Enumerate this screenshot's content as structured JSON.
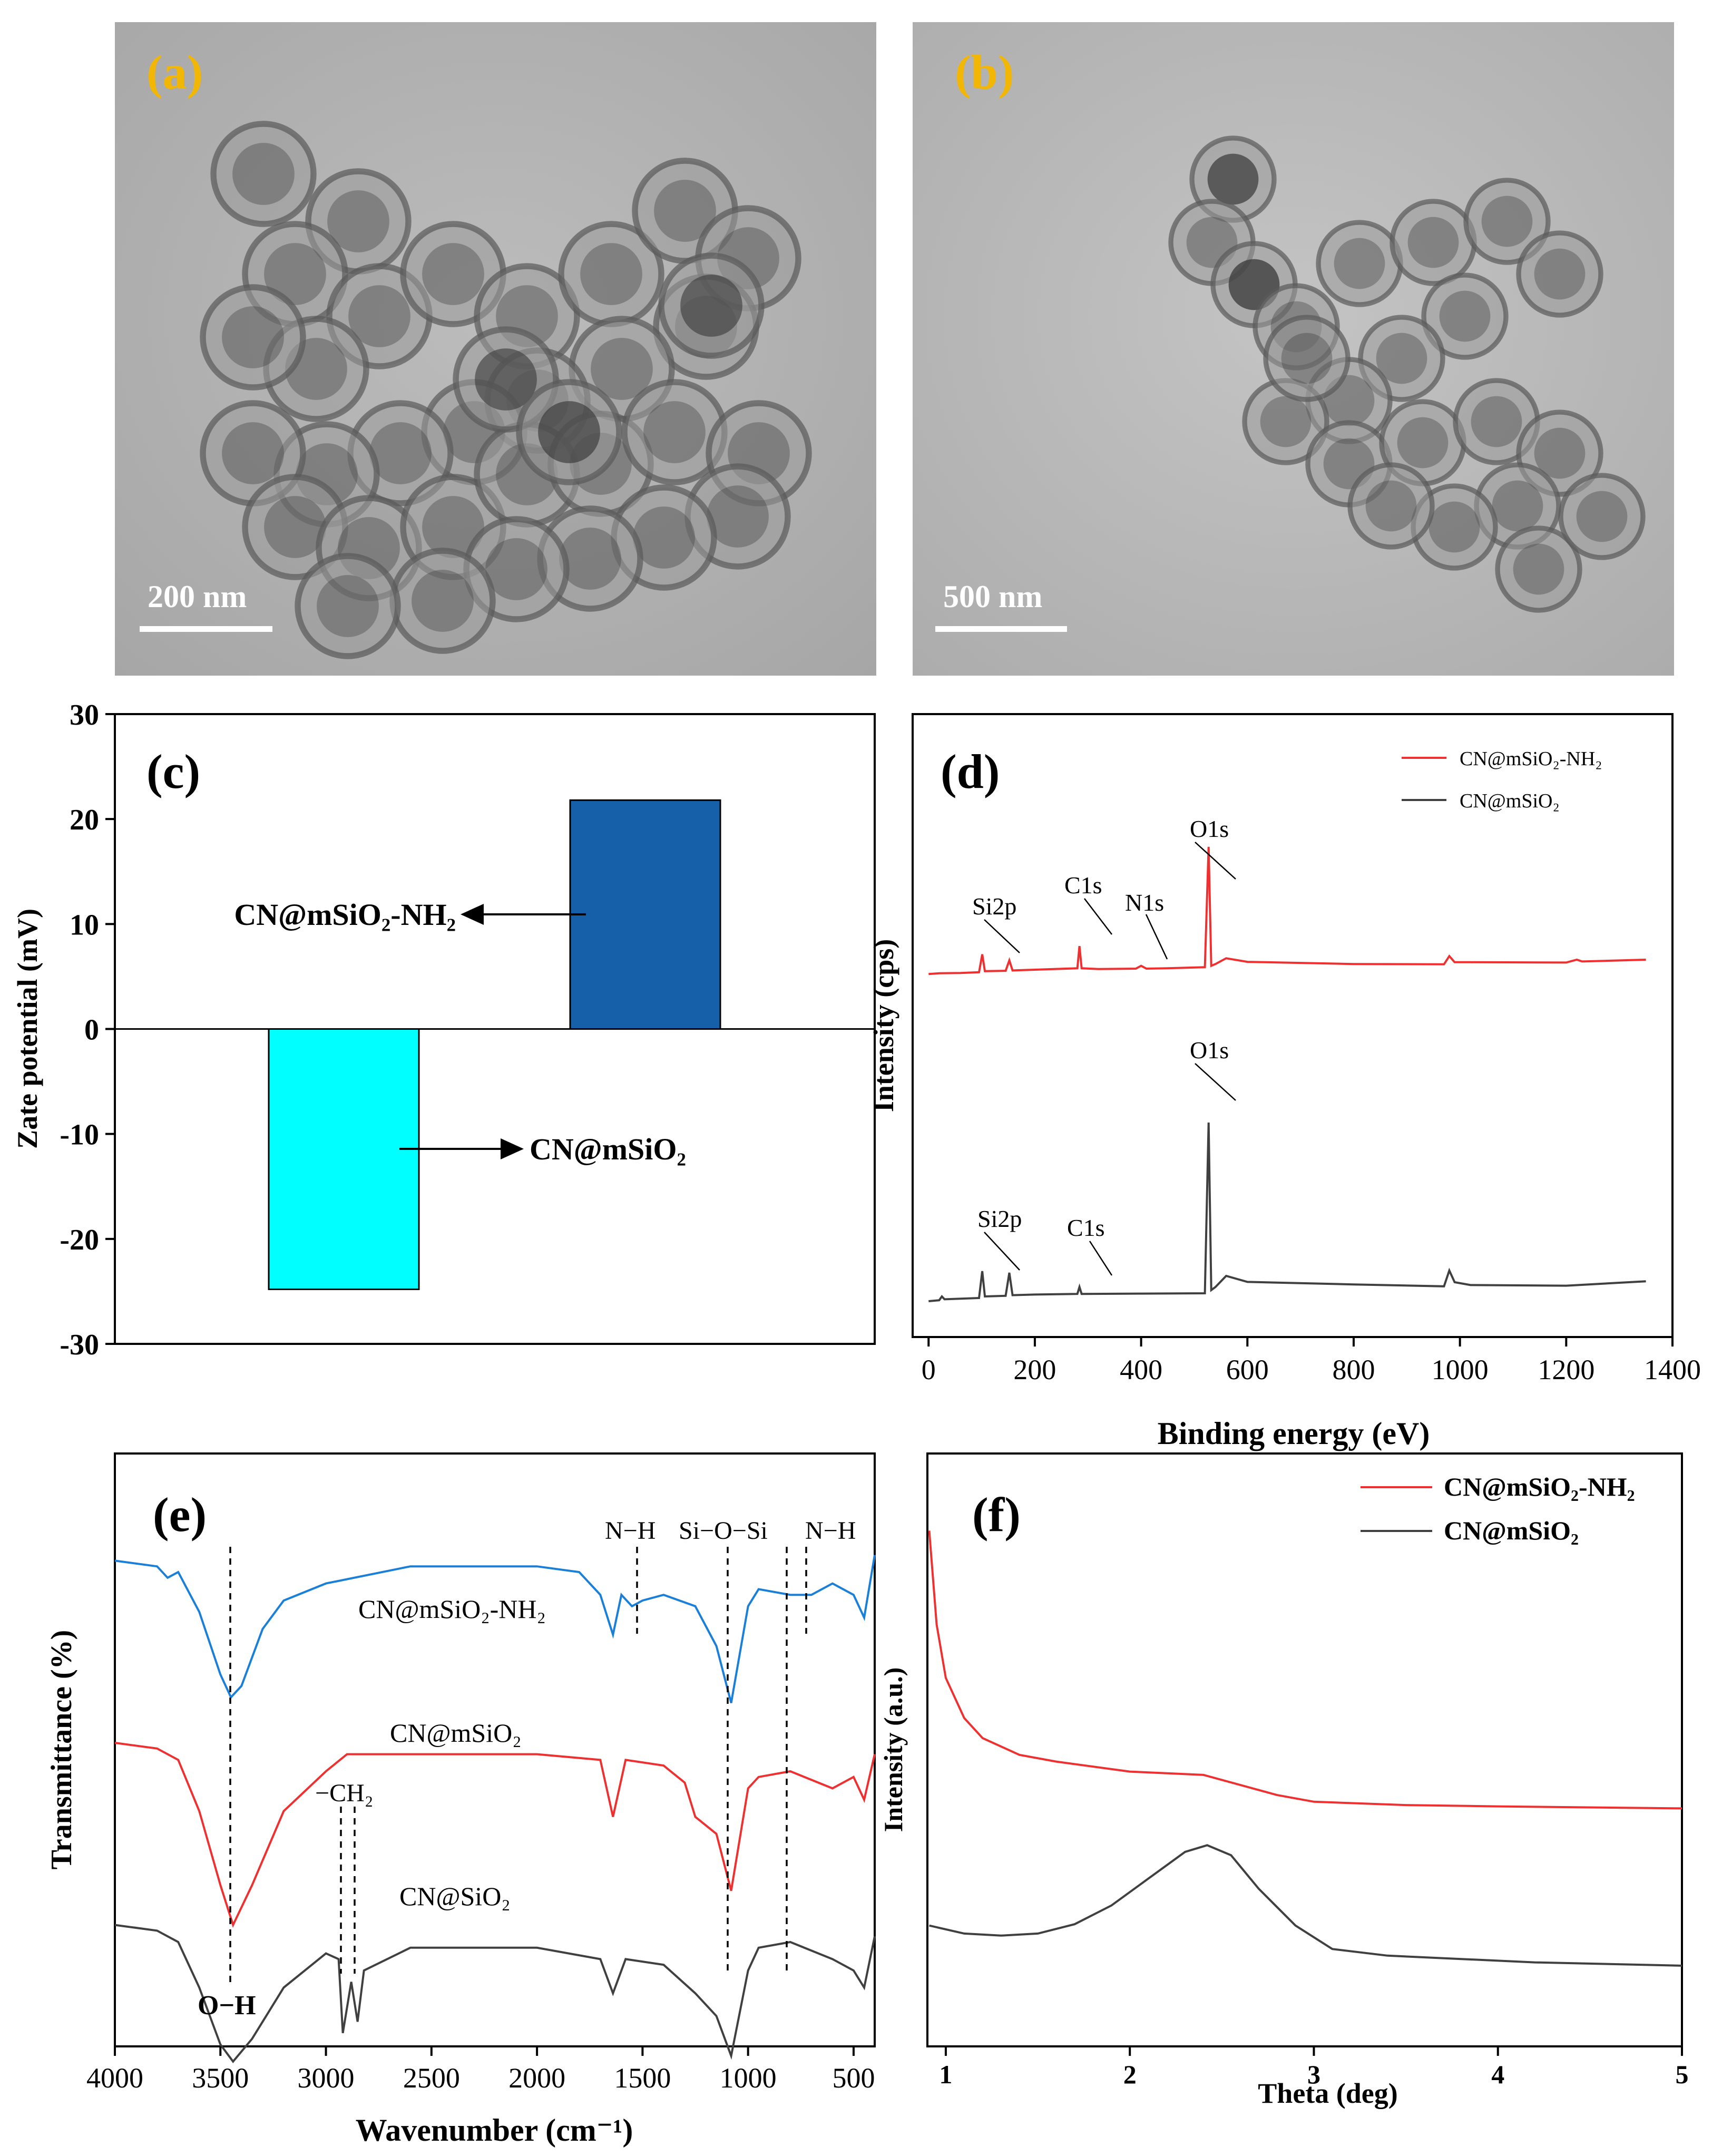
{
  "colors": {
    "label_yellow": "#f2b705",
    "cyan_bar": "#00ffff",
    "blue_bar": "#1560a8",
    "red_line": "#ee3030",
    "black_line": "#404040",
    "blue_line": "#1a7fd8",
    "tem_bg": "#b3b3b3",
    "tem_dark": "#383838"
  },
  "panels": {
    "a": {
      "label": "(a)",
      "scale_bar": "200 nm",
      "icon": "tem-micrograph-image"
    },
    "b": {
      "label": "(b)",
      "scale_bar": "500 nm",
      "icon": "tem-micrograph-image"
    },
    "c": {
      "label": "(c)"
    },
    "d": {
      "label": "(d)"
    },
    "e": {
      "label": "(e)"
    },
    "f": {
      "label": "(f)"
    }
  },
  "chart_data": [
    {
      "id": "c",
      "type": "bar",
      "title": "",
      "xlabel": "",
      "ylabel": "Zate potential (mV)",
      "ylim": [
        -30,
        30
      ],
      "yticks": [
        -30,
        -20,
        -10,
        0,
        10,
        20,
        30
      ],
      "categories": [
        "CN@mSiO2",
        "CN@mSiO2-NH2"
      ],
      "values": [
        -24.8,
        21.8
      ],
      "annotations": [
        {
          "text": "CN@mSiO₂",
          "points_to": "CN@mSiO2"
        },
        {
          "text": "CN@mSiO₂-NH₂",
          "points_to": "CN@mSiO2-NH2"
        }
      ]
    },
    {
      "id": "d",
      "type": "line",
      "title": "",
      "xlabel": "Binding energy (eV)",
      "ylabel": "Intensity (cps)",
      "xlim": [
        -30,
        1400
      ],
      "xticks": [
        0,
        200,
        400,
        600,
        800,
        1000,
        1200,
        1400
      ],
      "legend": [
        "CN@mSiO₂-NH₂",
        "CN@mSiO₂"
      ],
      "legend_position": "top-right",
      "series": [
        {
          "name": "CN@mSiO2-NH2",
          "color": "red",
          "x": [
            0,
            20,
            60,
            95,
            101,
            106,
            145,
            152,
            158,
            200,
            280,
            284,
            288,
            320,
            390,
            400,
            410,
            450,
            520,
            527,
            532,
            540,
            560,
            600,
            800,
            970,
            980,
            990,
            1020,
            1200,
            1220,
            1230,
            1350
          ],
          "y": [
            1.0,
            1.2,
            1.3,
            1.5,
            6.5,
            1.8,
            1.9,
            4.8,
            2.0,
            2.2,
            2.6,
            8.8,
            2.6,
            2.4,
            2.5,
            3.3,
            2.5,
            2.6,
            2.9,
            36.5,
            3.3,
            3.8,
            5.4,
            4.4,
            3.8,
            3.7,
            6.0,
            4.3,
            4.3,
            4.2,
            5.0,
            4.5,
            5.0
          ]
        },
        {
          "name": "CN@mSiO2",
          "color": "black",
          "x": [
            0,
            20,
            25,
            30,
            95,
            101,
            106,
            145,
            152,
            158,
            200,
            280,
            284,
            288,
            400,
            520,
            527,
            532,
            540,
            560,
            600,
            800,
            970,
            980,
            990,
            1020,
            1200,
            1350
          ],
          "y": [
            0.5,
            0.8,
            2.0,
            1.1,
            1.5,
            10.0,
            2.0,
            2.2,
            9.5,
            2.4,
            2.6,
            2.8,
            5.0,
            2.8,
            2.9,
            3.0,
            57.0,
            4.0,
            5.0,
            8.5,
            6.6,
            5.8,
            5.2,
            10.2,
            6.5,
            5.6,
            5.4,
            6.8
          ]
        }
      ],
      "annotations": [
        "Si2p",
        "C1s",
        "N1s",
        "O1s",
        "Si2p",
        "C1s",
        "O1s"
      ]
    },
    {
      "id": "e",
      "type": "line",
      "title": "",
      "xlabel": "Wavenumber (cm⁻¹)",
      "ylabel": "Transmittance (%)",
      "xlim": [
        4000,
        400
      ],
      "xticks": [
        4000,
        3500,
        3000,
        2500,
        2000,
        1500,
        1000,
        500
      ],
      "series": [
        {
          "name": "CN@mSiO2-NH2",
          "color": "blue",
          "x": [
            4000,
            3800,
            3750,
            3700,
            3600,
            3500,
            3450,
            3400,
            3300,
            3200,
            3000,
            2600,
            2000,
            1800,
            1700,
            1640,
            1600,
            1550,
            1500,
            1400,
            1250,
            1150,
            1080,
            1000,
            950,
            800,
            700,
            600,
            500,
            450,
            400
          ],
          "y": [
            92,
            91,
            89,
            90,
            83,
            72,
            68,
            70,
            80,
            85,
            88,
            91,
            91,
            90,
            86,
            79,
            86,
            84,
            85,
            86,
            84,
            77,
            67,
            84,
            87,
            86,
            86,
            88,
            86,
            82,
            93
          ]
        },
        {
          "name": "CN@mSiO2",
          "color": "red",
          "x": [
            4000,
            3800,
            3700,
            3600,
            3500,
            3440,
            3350,
            3200,
            3000,
            2900,
            2000,
            1700,
            1640,
            1580,
            1400,
            1300,
            1250,
            1150,
            1080,
            1000,
            950,
            800,
            600,
            500,
            450,
            400
          ],
          "y": [
            60,
            59,
            57,
            48,
            35,
            28,
            35,
            48,
            55,
            58,
            58,
            57,
            47,
            57,
            56,
            53,
            47,
            44,
            34,
            52,
            54,
            55,
            52,
            54,
            50,
            58
          ]
        },
        {
          "name": "CN@SiO2",
          "color": "black",
          "x": [
            4000,
            3800,
            3700,
            3600,
            3500,
            3440,
            3350,
            3200,
            3000,
            2940,
            2920,
            2880,
            2850,
            2820,
            2600,
            2000,
            1700,
            1640,
            1580,
            1400,
            1250,
            1150,
            1080,
            1000,
            950,
            800,
            600,
            500,
            450,
            400
          ],
          "y": [
            28,
            27,
            25,
            17,
            7,
            4,
            8,
            17,
            23,
            22,
            9,
            18,
            11,
            20,
            24,
            24,
            22,
            16,
            22,
            21,
            16,
            12,
            5,
            20,
            24,
            25,
            22,
            20,
            17,
            26
          ]
        }
      ],
      "annotations": [
        "N−H",
        "Si−O−Si",
        "N−H",
        "−CH₂",
        "O−H",
        "CN@mSiO₂-NH₂",
        "CN@mSiO₂",
        "CN@SiO₂"
      ]
    },
    {
      "id": "f",
      "type": "line",
      "title": "",
      "xlabel": "Theta (deg)",
      "ylabel": "Intensity (a.u.)",
      "xlim": [
        0.9,
        5
      ],
      "xticks": [
        1,
        2,
        3,
        4,
        5
      ],
      "legend": [
        "CN@mSiO₂-NH₂",
        "CN@mSiO₂"
      ],
      "legend_position": "top-right",
      "series": [
        {
          "name": "CN@mSiO2-NH2",
          "color": "red",
          "x": [
            0.91,
            0.95,
            1.0,
            1.1,
            1.2,
            1.4,
            1.6,
            2.0,
            2.4,
            2.8,
            3.0,
            3.5,
            4.0,
            5.0
          ],
          "y": [
            78,
            64,
            56,
            50,
            47,
            44.5,
            43.5,
            42,
            41.5,
            38.5,
            37.5,
            37,
            36.8,
            36.5
          ]
        },
        {
          "name": "CN@mSiO2",
          "color": "black",
          "x": [
            0.91,
            1.1,
            1.3,
            1.5,
            1.7,
            1.9,
            2.1,
            2.3,
            2.42,
            2.55,
            2.7,
            2.9,
            3.1,
            3.4,
            3.8,
            4.2,
            5.0
          ],
          "y": [
            19,
            17.8,
            17.5,
            17.8,
            19.2,
            22,
            26,
            30,
            31,
            29.5,
            24.5,
            19,
            15.5,
            14.5,
            14,
            13.5,
            13
          ]
        }
      ]
    }
  ]
}
